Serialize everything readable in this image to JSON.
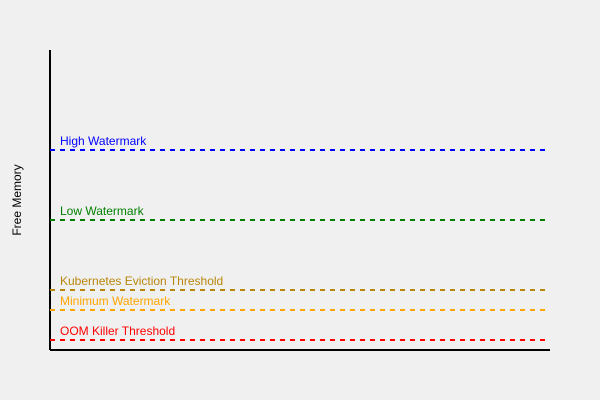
{
  "y_axis_label": "Free Memory",
  "thresholds": [
    {
      "label": "High Watermark",
      "color": "#0000ff"
    },
    {
      "label": "Low Watermark",
      "color": "#008000"
    },
    {
      "label": "Kubernetes Eviction Threshold",
      "color": "#b8860b"
    },
    {
      "label": "Minimum Watermark",
      "color": "#ffa500"
    },
    {
      "label": "OOM Killer Threshold",
      "color": "#ff0000"
    }
  ]
}
